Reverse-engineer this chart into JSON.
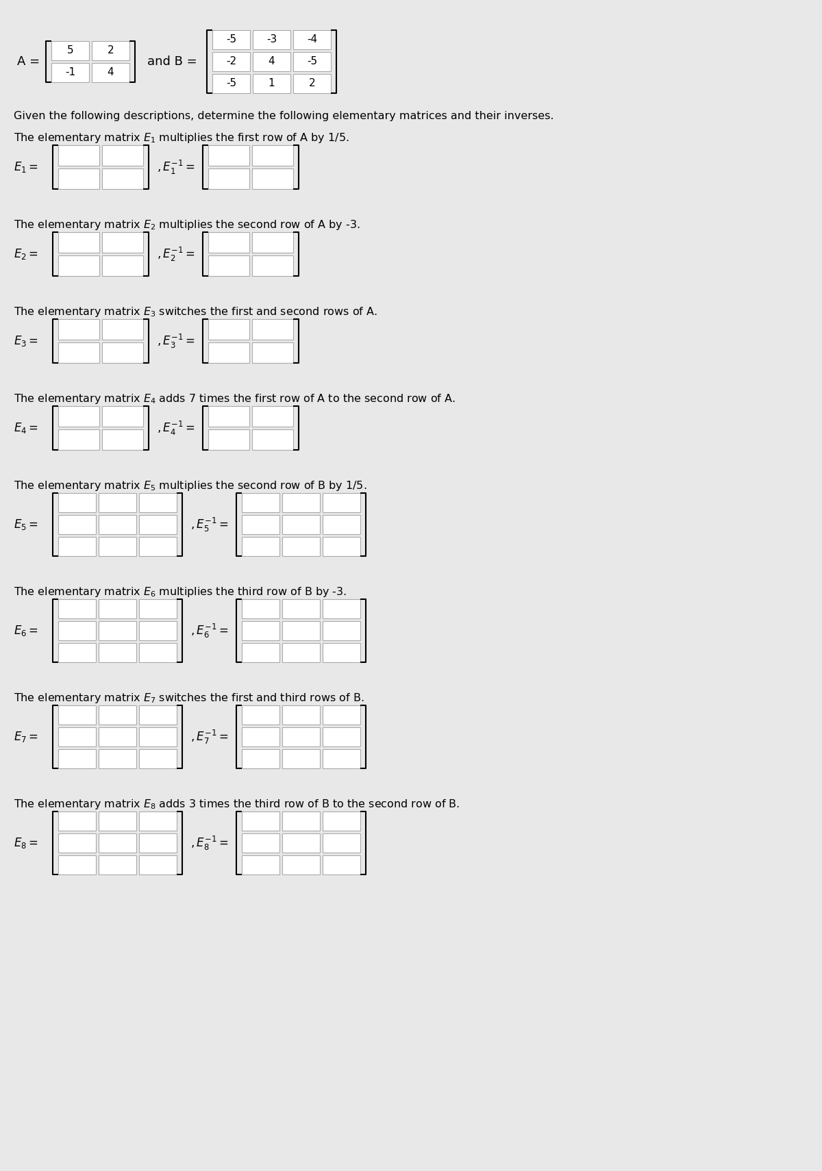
{
  "bg_color": "#e8e8e8",
  "text_color": "#000000",
  "box_color": "#ffffff",
  "box_edge_color": "#aaaaaa",
  "title_A": "A =",
  "A_matrix": [
    [
      5,
      2
    ],
    [
      -1,
      4
    ]
  ],
  "title_B": "and B =",
  "B_matrix": [
    [
      -5,
      -3,
      -4
    ],
    [
      -2,
      4,
      -5
    ],
    [
      -5,
      1,
      2
    ]
  ],
  "intro_text": "Given the following descriptions, determine the following elementary matrices and their inverses.",
  "parts": [
    {
      "label": "a",
      "desc": "The elementary matrix $E_1$ multiplies the first row of A by 1/5.",
      "lhs_label": "$E_1 =$",
      "rhs_label": "$,E_1^{-1} =$",
      "rows": 2,
      "cols": 2
    },
    {
      "label": "b",
      "desc": "The elementary matrix $E_2$ multiplies the second row of A by -3.",
      "lhs_label": "$E_2 =$",
      "rhs_label": "$,E_2^{-1} =$",
      "rows": 2,
      "cols": 2
    },
    {
      "label": "c",
      "desc": "The elementary matrix $E_3$ switches the first and second rows of A.",
      "lhs_label": "$E_3 =$",
      "rhs_label": "$,E_3^{-1} =$",
      "rows": 2,
      "cols": 2
    },
    {
      "label": "d",
      "desc": "The elementary matrix $E_4$ adds 7 times the first row of A to the second row of A.",
      "lhs_label": "$E_4 =$",
      "rhs_label": "$,E_4^{-1} =$",
      "rows": 2,
      "cols": 2
    },
    {
      "label": "e",
      "desc": "The elementary matrix $E_5$ multiplies the second row of B by 1/5.",
      "lhs_label": "$E_5 =$",
      "rhs_label": "$,E_5^{-1} =$",
      "rows": 3,
      "cols": 3
    },
    {
      "label": "f",
      "desc": "The elementary matrix $E_6$ multiplies the third row of B by -3.",
      "lhs_label": "$E_6 =$",
      "rhs_label": "$,E_6^{-1} =$",
      "rows": 3,
      "cols": 3
    },
    {
      "label": "g",
      "desc": "The elementary matrix $E_7$ switches the first and third rows of B.",
      "lhs_label": "$E_7 =$",
      "rhs_label": "$,E_7^{-1} =$",
      "rows": 3,
      "cols": 3
    },
    {
      "label": "h",
      "desc": "The elementary matrix $E_8$ adds 3 times the third row of B to the second row of B.",
      "lhs_label": "$E_8 =$",
      "rhs_label": "$,E_8^{-1} =$",
      "rows": 3,
      "cols": 3
    }
  ]
}
